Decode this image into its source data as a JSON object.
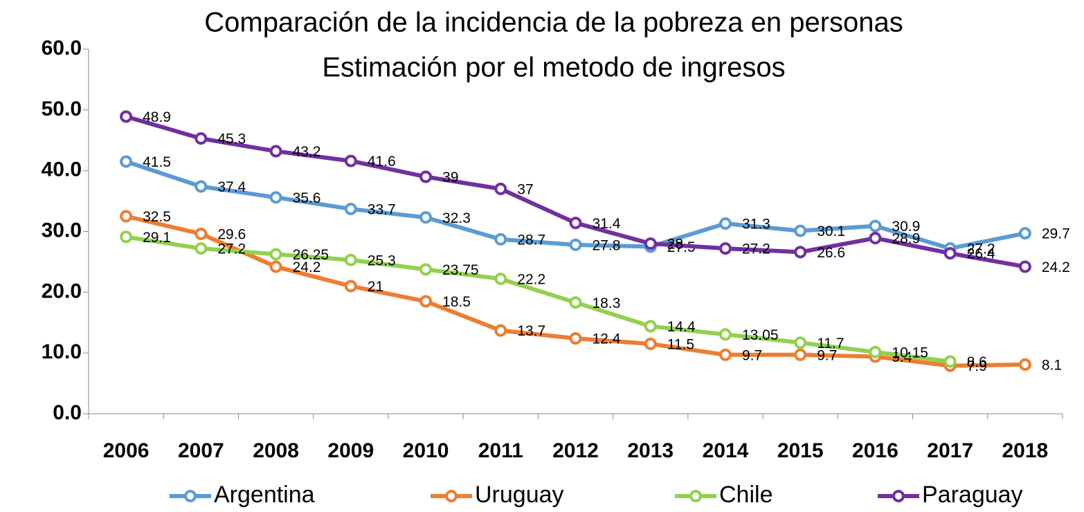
{
  "chart_data": {
    "type": "line",
    "title": "Comparación de la incidencia de la pobreza en personas",
    "subtitle": "Estimación por el metodo de ingresos",
    "categories": [
      "2006",
      "2007",
      "2008",
      "2009",
      "2010",
      "2011",
      "2012",
      "2013",
      "2014",
      "2015",
      "2016",
      "2017",
      "2018"
    ],
    "series": [
      {
        "name": "Argentina",
        "color": "#5b9bd5",
        "values": [
          41.5,
          37.4,
          35.6,
          33.7,
          32.3,
          28.7,
          27.8,
          27.5,
          31.3,
          30.1,
          30.9,
          27.2,
          29.7
        ]
      },
      {
        "name": "Uruguay",
        "color": "#ed7d31",
        "values": [
          32.5,
          29.6,
          24.2,
          21,
          18.5,
          13.7,
          12.4,
          11.5,
          9.7,
          9.7,
          9.4,
          7.9,
          8.1
        ]
      },
      {
        "name": "Chile",
        "color": "#92d050",
        "values": [
          29.1,
          27.2,
          26.25,
          25.3,
          23.75,
          22.2,
          18.3,
          14.4,
          13.05,
          11.7,
          10.15,
          8.6,
          null
        ]
      },
      {
        "name": "Paraguay",
        "color": "#7030a0",
        "values": [
          48.9,
          45.3,
          43.2,
          41.6,
          39,
          37,
          31.4,
          28,
          27.2,
          26.6,
          28.9,
          26.4,
          24.2
        ]
      }
    ],
    "ylim": [
      0,
      60
    ],
    "yticks": [
      {
        "value": 0,
        "label": "0.0"
      },
      {
        "value": 10,
        "label": "10.0"
      },
      {
        "value": 20,
        "label": "20.0"
      },
      {
        "value": 30,
        "label": "30.0"
      },
      {
        "value": 40,
        "label": "40.0"
      },
      {
        "value": 50,
        "label": "50.0"
      },
      {
        "value": 60,
        "label": "60.0"
      }
    ],
    "legend": "bottom"
  }
}
